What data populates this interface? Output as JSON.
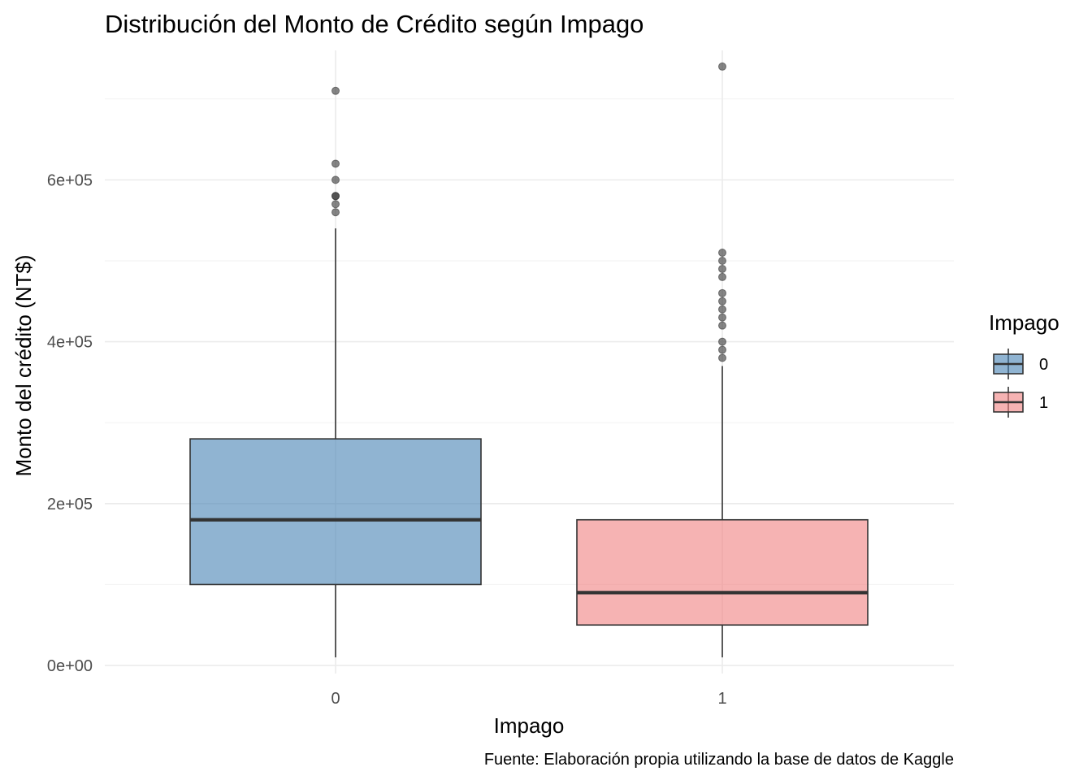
{
  "chart_data": {
    "type": "boxplot",
    "title": "Distribución del Monto de Crédito según Impago",
    "xlabel": "Impago",
    "ylabel": "Monto del crédito (NT$)",
    "caption": "Fuente: Elaboración propia utilizando la base de datos de Kaggle",
    "categories": [
      "0",
      "1"
    ],
    "ylim": [
      -10000,
      760000
    ],
    "y_ticks": [
      0,
      200000,
      400000,
      600000
    ],
    "y_tick_labels": [
      "0e+00",
      "2e+05",
      "4e+05",
      "6e+05"
    ],
    "grid": true,
    "legend": {
      "title": "Impago",
      "position": "right",
      "entries": [
        "0",
        "1"
      ]
    },
    "series": [
      {
        "category": "0",
        "color": "#4682b4",
        "min": 10000,
        "q1": 100000,
        "median": 180000,
        "q3": 280000,
        "max": 540000,
        "outliers": [
          560000,
          570000,
          580000,
          580000,
          600000,
          620000,
          710000
        ]
      },
      {
        "category": "1",
        "color": "#f08080",
        "min": 10000,
        "q1": 50000,
        "median": 90000,
        "q3": 180000,
        "max": 370000,
        "outliers": [
          380000,
          390000,
          400000,
          420000,
          430000,
          440000,
          450000,
          460000,
          480000,
          490000,
          500000,
          510000,
          740000
        ]
      }
    ]
  }
}
